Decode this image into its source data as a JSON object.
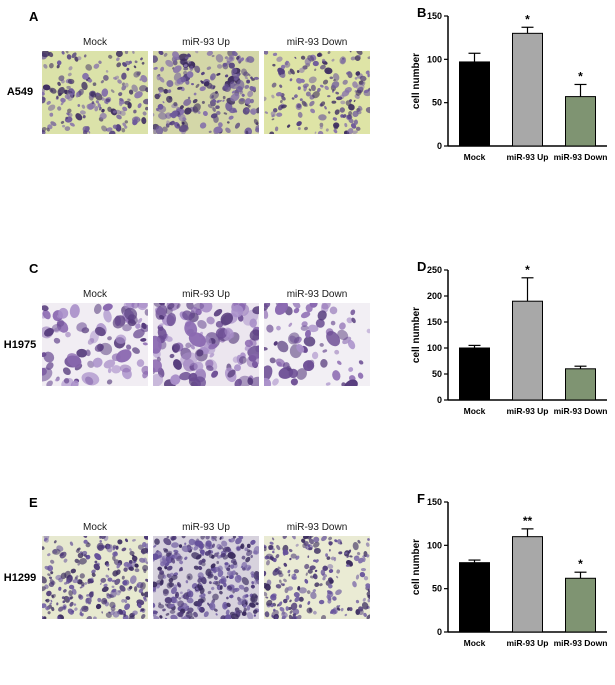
{
  "figure": {
    "rows": [
      {
        "image_panel": "A",
        "cell_line": "A549",
        "conditions": [
          "Mock",
          "miR-93 Up",
          "miR-93 Down"
        ]
      },
      {
        "image_panel": "C",
        "cell_line": "H1975",
        "conditions": [
          "Mock",
          "miR-93 Up",
          "miR-93 Down"
        ]
      },
      {
        "image_panel": "E",
        "cell_line": "H1299",
        "conditions": [
          "Mock",
          "miR-93 Up",
          "miR-93 Down"
        ]
      }
    ]
  },
  "chart_data": [
    {
      "panel": "B",
      "type": "bar",
      "categories": [
        "Mock",
        "miR-93 Up",
        "miR-93 Down"
      ],
      "values": [
        97,
        130,
        57
      ],
      "errors": [
        10,
        7,
        14
      ],
      "significance": [
        "",
        "*",
        "*"
      ],
      "title": "",
      "xlabel": "",
      "ylabel": "cell number",
      "ylim": [
        0,
        150
      ],
      "yticks": [
        0,
        50,
        100,
        150
      ],
      "bar_colors": [
        "#000000",
        "#a8a8a8",
        "#7f9472"
      ],
      "legend": "none",
      "grid": false
    },
    {
      "panel": "D",
      "type": "bar",
      "categories": [
        "Mock",
        "miR-93 Up",
        "miR-93 Down"
      ],
      "values": [
        100,
        190,
        60
      ],
      "errors": [
        5,
        45,
        5
      ],
      "significance": [
        "",
        "*",
        ""
      ],
      "title": "",
      "xlabel": "",
      "ylabel": "cell number",
      "ylim": [
        0,
        250
      ],
      "yticks": [
        0,
        50,
        100,
        150,
        200,
        250
      ],
      "bar_colors": [
        "#000000",
        "#a8a8a8",
        "#7f9472"
      ],
      "legend": "none",
      "grid": false
    },
    {
      "panel": "F",
      "type": "bar",
      "categories": [
        "Mock",
        "miR-93 Up",
        "miR-93 Down"
      ],
      "values": [
        80,
        110,
        62
      ],
      "errors": [
        3,
        9,
        7
      ],
      "significance": [
        "",
        "**",
        "*"
      ],
      "title": "",
      "xlabel": "",
      "ylabel": "cell number",
      "ylim": [
        0,
        150
      ],
      "yticks": [
        0,
        50,
        100,
        150
      ],
      "bar_colors": [
        "#000000",
        "#a8a8a8",
        "#7f9472"
      ],
      "legend": "none",
      "grid": false
    }
  ]
}
